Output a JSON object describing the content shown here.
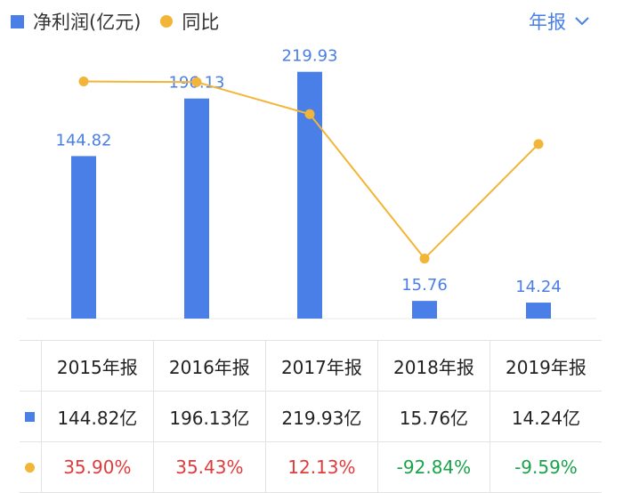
{
  "legend": {
    "bar_label": "净利润(亿元)",
    "line_label": "同比"
  },
  "period_selector": {
    "label": "年报",
    "icon": "chevron-down-icon"
  },
  "colors": {
    "bar": "#4a7fe8",
    "line": "#f2b537",
    "positive": "#e03b3b",
    "negative": "#1aa34a",
    "label": "#4a7fe8"
  },
  "chart_data": {
    "type": "bar",
    "categories": [
      "2015年报",
      "2016年报",
      "2017年报",
      "2018年报",
      "2019年报"
    ],
    "series": [
      {
        "name": "净利润(亿元)",
        "type": "bar",
        "values": [
          144.82,
          196.13,
          219.93,
          15.76,
          14.24
        ]
      },
      {
        "name": "同比",
        "type": "line",
        "values": [
          35.9,
          35.43,
          12.13,
          -92.84,
          -9.59
        ]
      }
    ],
    "data_labels": [
      "144.82",
      "196.13",
      "219.93",
      "15.76",
      "14.24"
    ],
    "ylim_bar": [
      0,
      230
    ],
    "ylim_line": [
      -130,
      55
    ]
  },
  "table": {
    "headers": [
      "2015年报",
      "2016年报",
      "2017年报",
      "2018年报",
      "2019年报"
    ],
    "profit": [
      "144.82亿",
      "196.13亿",
      "219.93亿",
      "15.76亿",
      "14.24亿"
    ],
    "growth": [
      "35.90%",
      "35.43%",
      "12.13%",
      "-92.84%",
      "-9.59%"
    ]
  }
}
